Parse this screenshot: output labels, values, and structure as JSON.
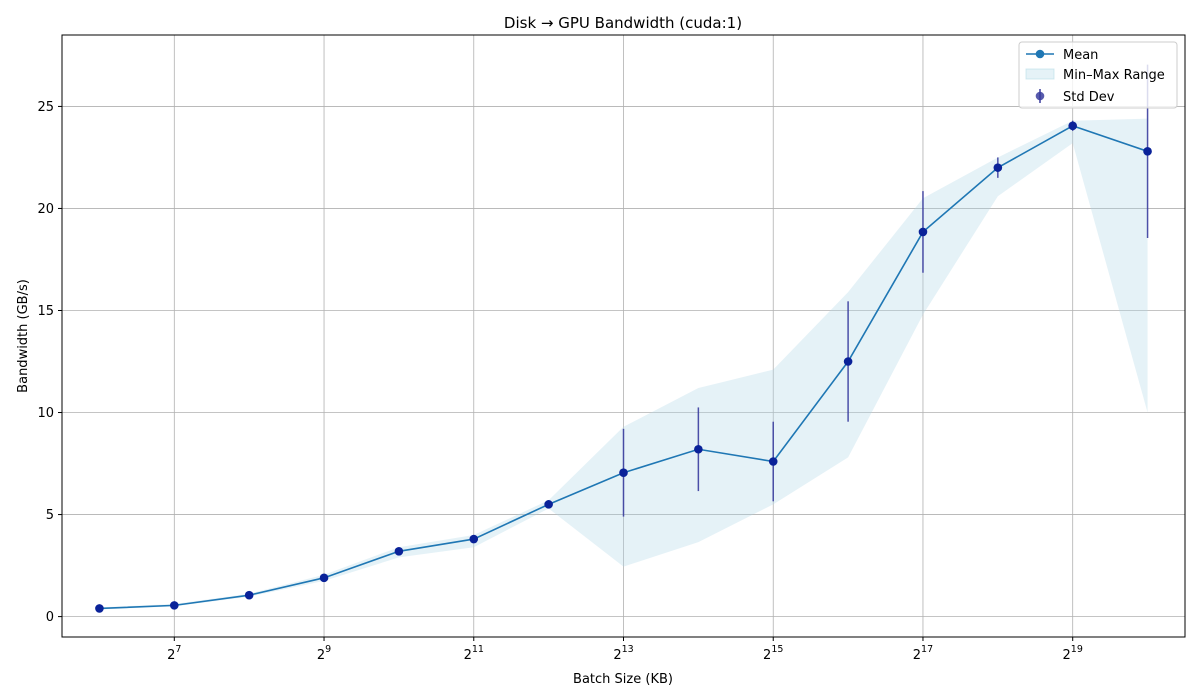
{
  "chart_data": {
    "type": "line",
    "title": "Disk → GPU Bandwidth (cuda:1)",
    "xlabel": "Batch Size (KB)",
    "ylabel": "Bandwidth (GB/s)",
    "x_scale": "log2",
    "x": [
      64,
      128,
      256,
      512,
      1024,
      2048,
      4096,
      8192,
      16384,
      32768,
      65536,
      131072,
      262144,
      524288,
      1048576
    ],
    "xticks": [
      {
        "value": 128,
        "base": "2",
        "exp": "7"
      },
      {
        "value": 512,
        "base": "2",
        "exp": "9"
      },
      {
        "value": 2048,
        "base": "2",
        "exp": "11"
      },
      {
        "value": 8192,
        "base": "2",
        "exp": "13"
      },
      {
        "value": 32768,
        "base": "2",
        "exp": "15"
      },
      {
        "value": 131072,
        "base": "2",
        "exp": "17"
      },
      {
        "value": 524288,
        "base": "2",
        "exp": "19"
      }
    ],
    "ylim": [
      -1,
      28.5
    ],
    "yticks": [
      0,
      5,
      10,
      15,
      20,
      25
    ],
    "grid": true,
    "legend_position": "top-right",
    "series": [
      {
        "name": "Mean",
        "values": [
          0.4,
          0.55,
          1.05,
          1.9,
          3.2,
          3.8,
          5.5,
          7.05,
          8.2,
          7.6,
          12.5,
          18.85,
          22.0,
          24.05,
          22.8
        ]
      },
      {
        "name": "Min–Max Range",
        "min": [
          0.35,
          0.5,
          0.98,
          1.75,
          2.9,
          3.4,
          5.3,
          2.45,
          3.65,
          5.5,
          7.8,
          14.8,
          20.6,
          23.2,
          10.0
        ],
        "max": [
          0.45,
          0.62,
          1.12,
          2.05,
          3.4,
          4.0,
          5.7,
          9.3,
          11.2,
          12.1,
          15.9,
          20.5,
          22.5,
          24.3,
          24.4
        ]
      },
      {
        "name": "Std Dev",
        "values": [
          0.03,
          0.04,
          0.05,
          0.08,
          0.12,
          0.15,
          0.2,
          2.15,
          2.05,
          1.95,
          2.95,
          2.0,
          0.5,
          0.25,
          4.25
        ]
      }
    ],
    "colors": {
      "mean_line": "#1f77b4",
      "marker": "#0a2299",
      "errorbar": "#3a3d9e",
      "fill": "#add8e6",
      "grid": "#b0b0b0"
    }
  }
}
